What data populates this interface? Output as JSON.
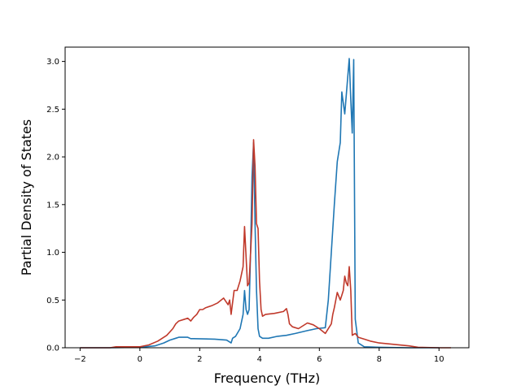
{
  "chart_data": {
    "type": "line",
    "title": "",
    "xlabel": "Frequency (THz)",
    "ylabel": "Partial Density of States",
    "xlim": [
      -2.5,
      11
    ],
    "ylim": [
      0,
      3.15
    ],
    "x_ticks": [
      -2,
      0,
      2,
      4,
      6,
      8,
      10
    ],
    "y_ticks": [
      0.0,
      0.5,
      1.0,
      1.5,
      2.0,
      2.5,
      3.0
    ],
    "x_tick_labels": [
      "−2",
      "0",
      "2",
      "4",
      "6",
      "8",
      "10"
    ],
    "y_tick_labels": [
      "0.0",
      "0.5",
      "1.0",
      "1.5",
      "2.0",
      "2.5",
      "3.0"
    ],
    "grid": false,
    "legend": "none",
    "series": [
      {
        "color": "#1f77b4",
        "x": [
          -2,
          -1,
          0,
          0.5,
          0.8,
          1,
          1.2,
          1.3,
          1.6,
          1.7,
          1.8,
          2.5,
          2.9,
          3.05,
          3.1,
          3.2,
          3.35,
          3.45,
          3.5,
          3.55,
          3.6,
          3.65,
          3.7,
          3.75,
          3.8,
          3.85,
          3.9,
          3.95,
          4.0,
          4.1,
          4.2,
          4.3,
          4.6,
          4.9,
          5.2,
          5.6,
          5.9,
          6.2,
          6.3,
          6.4,
          6.5,
          6.6,
          6.7,
          6.75,
          6.85,
          6.9,
          7.0,
          7.05,
          7.1,
          7.15,
          7.2,
          7.3,
          7.5,
          8,
          9,
          10
        ],
        "y": [
          0,
          0,
          0.005,
          0.02,
          0.05,
          0.08,
          0.1,
          0.11,
          0.11,
          0.095,
          0.095,
          0.09,
          0.08,
          0.05,
          0.1,
          0.12,
          0.2,
          0.35,
          0.6,
          0.4,
          0.35,
          0.4,
          1.0,
          1.8,
          2.15,
          1.3,
          0.6,
          0.2,
          0.12,
          0.1,
          0.1,
          0.1,
          0.12,
          0.13,
          0.15,
          0.18,
          0.2,
          0.21,
          0.5,
          1.0,
          1.5,
          1.95,
          2.15,
          2.68,
          2.45,
          2.65,
          3.03,
          2.6,
          2.25,
          3.02,
          0.3,
          0.05,
          0.01,
          0.005,
          0,
          0
        ]
      },
      {
        "color": "#c0392b",
        "x": [
          -2,
          -1,
          -0.8,
          0,
          0.3,
          0.6,
          0.9,
          1.1,
          1.2,
          1.3,
          1.5,
          1.6,
          1.7,
          1.8,
          1.9,
          2.0,
          2.1,
          2.2,
          2.4,
          2.6,
          2.8,
          2.95,
          3.0,
          3.05,
          3.15,
          3.25,
          3.35,
          3.45,
          3.5,
          3.55,
          3.6,
          3.65,
          3.75,
          3.8,
          3.85,
          3.9,
          3.95,
          4.0,
          4.05,
          4.1,
          4.2,
          4.5,
          4.8,
          4.9,
          4.95,
          5.0,
          5.1,
          5.3,
          5.6,
          5.8,
          6.0,
          6.2,
          6.4,
          6.45,
          6.5,
          6.6,
          6.7,
          6.75,
          6.8,
          6.85,
          6.9,
          6.95,
          7.0,
          7.05,
          7.1,
          7.15,
          7.2,
          7.3,
          7.5,
          7.7,
          8,
          9,
          9.3,
          10,
          10.4
        ],
        "y": [
          0,
          0,
          0.01,
          0.01,
          0.03,
          0.07,
          0.13,
          0.2,
          0.25,
          0.28,
          0.3,
          0.31,
          0.28,
          0.32,
          0.35,
          0.4,
          0.4,
          0.42,
          0.44,
          0.47,
          0.52,
          0.45,
          0.5,
          0.35,
          0.6,
          0.6,
          0.7,
          0.85,
          1.27,
          0.95,
          0.65,
          0.68,
          1.3,
          2.18,
          1.9,
          1.3,
          1.25,
          0.7,
          0.4,
          0.33,
          0.35,
          0.36,
          0.38,
          0.41,
          0.35,
          0.25,
          0.22,
          0.2,
          0.26,
          0.24,
          0.2,
          0.15,
          0.25,
          0.35,
          0.42,
          0.58,
          0.5,
          0.55,
          0.6,
          0.75,
          0.68,
          0.65,
          0.85,
          0.6,
          0.13,
          0.14,
          0.15,
          0.11,
          0.09,
          0.07,
          0.05,
          0.02,
          0.005,
          0,
          0
        ]
      }
    ]
  }
}
